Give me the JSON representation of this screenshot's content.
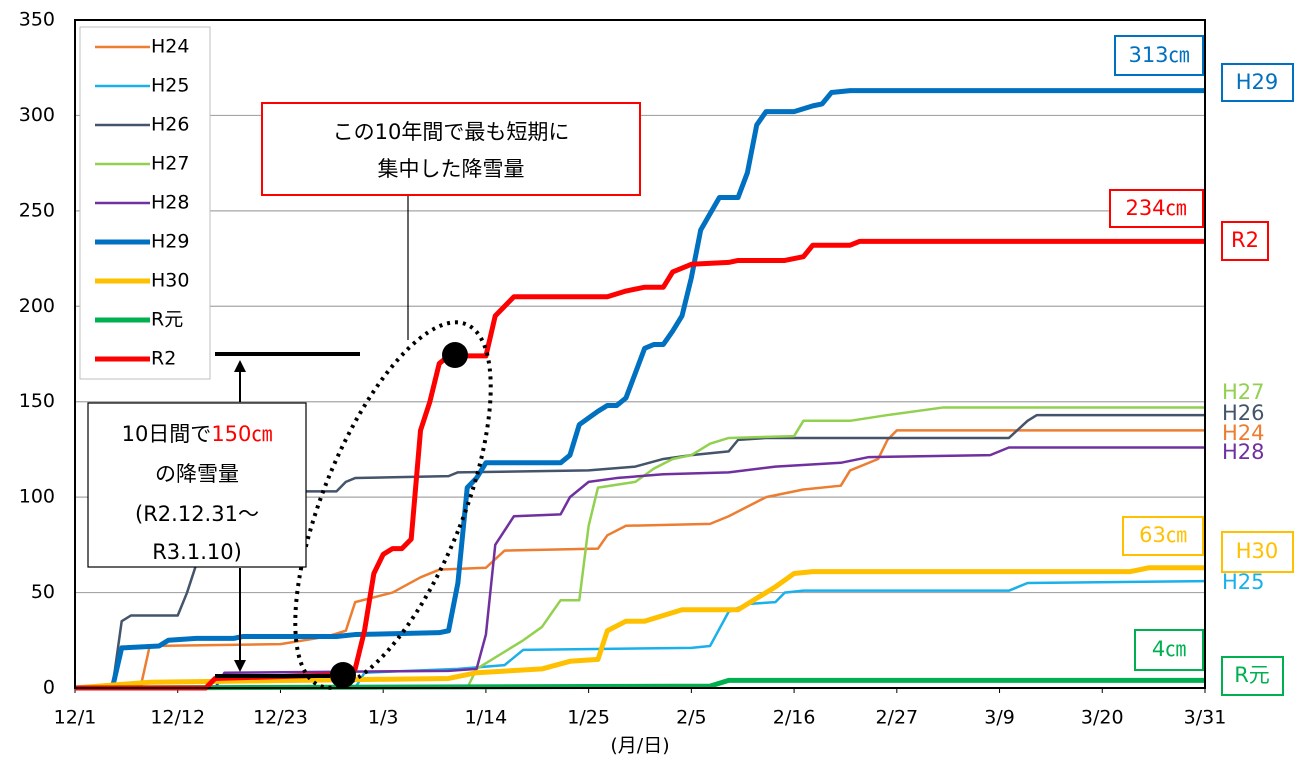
{
  "chart_data": {
    "type": "line",
    "x_axis_label": "(月/日)",
    "xlim": [
      0,
      121
    ],
    "xticks": [
      {
        "value": 0,
        "label": "12/1"
      },
      {
        "value": 11,
        "label": "12/12"
      },
      {
        "value": 22,
        "label": "12/23"
      },
      {
        "value": 33,
        "label": "1/3"
      },
      {
        "value": 44,
        "label": "1/14"
      },
      {
        "value": 55,
        "label": "1/25"
      },
      {
        "value": 66,
        "label": "2/5"
      },
      {
        "value": 77,
        "label": "2/16"
      },
      {
        "value": 88,
        "label": "2/27"
      },
      {
        "value": 99,
        "label": "3/9"
      },
      {
        "value": 110,
        "label": "3/20"
      },
      {
        "value": 121,
        "label": "3/31"
      }
    ],
    "ylim": [
      0,
      350
    ],
    "yticks": [
      0,
      50,
      100,
      150,
      200,
      250,
      300,
      350
    ],
    "grid": true,
    "legend": "upper left",
    "series": [
      {
        "name": "H24",
        "color": "#ed7d31",
        "x": [
          0,
          7,
          8,
          22,
          27,
          29,
          30,
          34,
          37,
          39,
          44,
          46,
          56,
          57,
          59,
          68,
          70,
          74,
          78,
          82,
          83,
          86,
          87,
          88,
          121
        ],
        "values": [
          0,
          0,
          22,
          23,
          27,
          30,
          45,
          50,
          58,
          62,
          63,
          72,
          73,
          80,
          85,
          86,
          90,
          100,
          104,
          106,
          114,
          120,
          130,
          135,
          135
        ]
      },
      {
        "name": "H25",
        "color": "#1ab0ea",
        "x": [
          0,
          30,
          31,
          41,
          46,
          48,
          66,
          68,
          70,
          72,
          75,
          76,
          78,
          100,
          102,
          121
        ],
        "values": [
          0,
          0,
          8,
          10,
          12,
          20,
          21,
          22,
          40,
          44,
          45,
          50,
          51,
          51,
          55,
          56
        ]
      },
      {
        "name": "H26",
        "color": "#44546a",
        "x": [
          0,
          4,
          5,
          6,
          11,
          12,
          13,
          14,
          16,
          18,
          19,
          28,
          29,
          30,
          40,
          41,
          55,
          60,
          63,
          66,
          70,
          71,
          74,
          100,
          102,
          103,
          121
        ],
        "values": [
          0,
          0,
          35,
          38,
          38,
          50,
          65,
          75,
          90,
          100,
          103,
          103,
          108,
          110,
          111,
          113,
          114,
          116,
          120,
          122,
          124,
          130,
          131,
          131,
          140,
          143,
          143
        ]
      },
      {
        "name": "H27",
        "color": "#92d050",
        "x": [
          0,
          42,
          43,
          48,
          50,
          52,
          54,
          55,
          56,
          60,
          62,
          64,
          66,
          68,
          70,
          77,
          78,
          83,
          87,
          93,
          121
        ],
        "values": [
          0,
          0,
          10,
          25,
          32,
          46,
          46,
          85,
          105,
          108,
          115,
          120,
          122,
          128,
          131,
          132,
          140,
          140,
          143,
          147,
          147
        ]
      },
      {
        "name": "H28",
        "color": "#7030a0",
        "x": [
          0,
          15,
          16,
          40,
          43,
          44,
          45,
          47,
          52,
          53,
          55,
          58,
          63,
          70,
          75,
          82,
          85,
          98,
          100,
          121
        ],
        "values": [
          0,
          0,
          8,
          9,
          10,
          28,
          75,
          90,
          91,
          100,
          108,
          110,
          112,
          113,
          116,
          118,
          121,
          122,
          126,
          126
        ]
      },
      {
        "name": "H29",
        "color": "#0070c0",
        "x": [
          0,
          4,
          5,
          9,
          10,
          13,
          17,
          18,
          28,
          30,
          39,
          40,
          41,
          42,
          43,
          44,
          52,
          53,
          54,
          56,
          57,
          58,
          59,
          60,
          61,
          62,
          63,
          64,
          65,
          66,
          67,
          69,
          71,
          72,
          73,
          74,
          77,
          79,
          80,
          81,
          83,
          121
        ],
        "values": [
          0,
          0,
          21,
          22,
          25,
          26,
          26,
          27,
          27,
          28,
          29,
          30,
          55,
          105,
          110,
          118,
          118,
          122,
          138,
          145,
          148,
          148,
          152,
          165,
          178,
          180,
          180,
          187,
          195,
          215,
          240,
          257,
          257,
          270,
          295,
          302,
          302,
          305,
          306,
          312,
          313,
          313
        ]
      },
      {
        "name": "H30",
        "color": "#ffc000",
        "x": [
          0,
          8,
          40,
          43,
          50,
          53,
          56,
          57,
          59,
          61,
          63,
          65,
          71,
          73,
          75,
          77,
          79,
          113,
          115,
          121
        ],
        "values": [
          0,
          3,
          5,
          8,
          10,
          14,
          15,
          30,
          35,
          35,
          38,
          41,
          41,
          47,
          53,
          60,
          61,
          61,
          63,
          63
        ]
      },
      {
        "name": "R元",
        "color": "#00b050",
        "x": [
          0,
          68,
          70,
          121
        ],
        "values": [
          0,
          1,
          4,
          4
        ]
      },
      {
        "name": "R2",
        "color": "#ff0000",
        "x": [
          0,
          14,
          15,
          29,
          30,
          31,
          32,
          33,
          34,
          35,
          36,
          37,
          38,
          39,
          40,
          44,
          45,
          47,
          57,
          59,
          61,
          63,
          64,
          66,
          70,
          71,
          76,
          78,
          79,
          83,
          84,
          121
        ],
        "values": [
          0,
          0,
          5,
          7,
          10,
          30,
          60,
          70,
          73,
          73,
          78,
          135,
          150,
          170,
          174,
          174,
          195,
          205,
          205,
          208,
          210,
          210,
          218,
          222,
          223,
          224,
          224,
          226,
          232,
          232,
          234,
          234
        ]
      }
    ],
    "annotations": {
      "callout": [
        "この10年間で最も短期に",
        "集中した降雪量"
      ],
      "box": [
        "10日間で",
        "150㎝",
        "の降雪量",
        "(R2.12.31～",
        "R3.1.10)"
      ],
      "end_totals": [
        "313㎝",
        "234㎝",
        "63㎝",
        "4㎝"
      ],
      "end_names": [
        "H29",
        "R2",
        "H27",
        "H26",
        "H24",
        "H28",
        "H30",
        "H25",
        "R元"
      ]
    }
  }
}
